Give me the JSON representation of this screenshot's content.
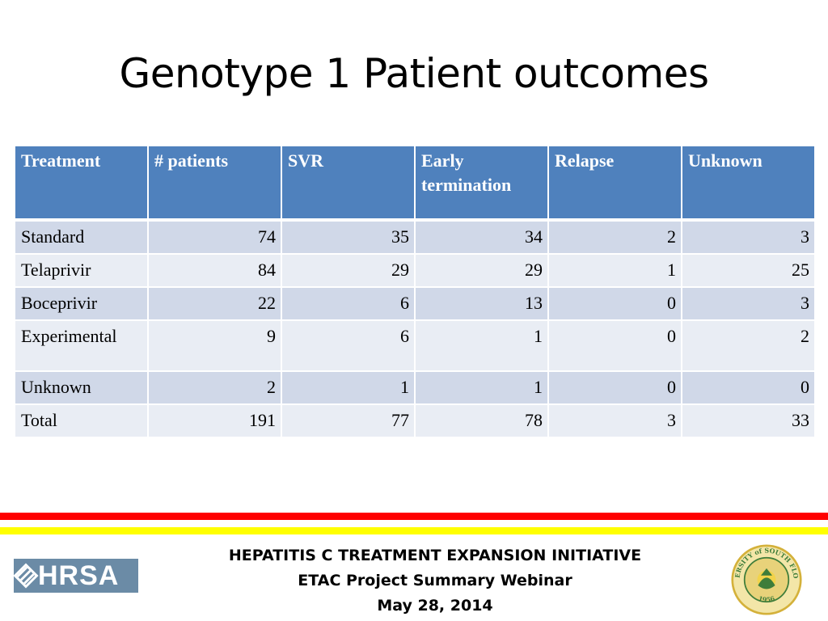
{
  "slide": {
    "title": "Genotype 1 Patient outcomes"
  },
  "table": {
    "headers": [
      "Treatment",
      "# patients",
      "SVR",
      "Early termination",
      "Relapse",
      "Unknown"
    ],
    "rows": [
      {
        "treatment": "Standard",
        "patients": "74",
        "svr": "35",
        "early_termination": "34",
        "relapse": "2",
        "unknown": "3"
      },
      {
        "treatment": "Telaprivir",
        "patients": "84",
        "svr": "29",
        "early_termination": "29",
        "relapse": "1",
        "unknown": "25"
      },
      {
        "treatment": "Boceprivir",
        "patients": "22",
        "svr": "6",
        "early_termination": "13",
        "relapse": "0",
        "unknown": "3"
      },
      {
        "treatment": "Experimental",
        "patients": "9",
        "svr": "6",
        "early_termination": "1",
        "relapse": "0",
        "unknown": "2"
      },
      {
        "treatment": "Unknown",
        "patients": "2",
        "svr": "1",
        "early_termination": "1",
        "relapse": "0",
        "unknown": "0"
      },
      {
        "treatment": "Total",
        "patients": "191",
        "svr": "77",
        "early_termination": "78",
        "relapse": "3",
        "unknown": "33"
      }
    ]
  },
  "footer": {
    "line1": "HEPATITIS C TREATMENT EXPANSION INITIATIVE",
    "line2": "ETAC Project Summary Webinar",
    "line3": "May 28, 2014"
  },
  "logos": {
    "hrsa_text": "HRSA",
    "usf_seal_text": "UNIVERSITY of SOUTH FLORIDA",
    "usf_seal_year": "1956"
  },
  "colors": {
    "header_blue": "#4f81bd",
    "row_odd": "#d0d8e8",
    "row_even": "#e9edf4",
    "bar_red": "#ff0000",
    "bar_yellow": "#ffff00",
    "usf_green": "#3f7d3a",
    "usf_gold": "#d4b13a"
  }
}
